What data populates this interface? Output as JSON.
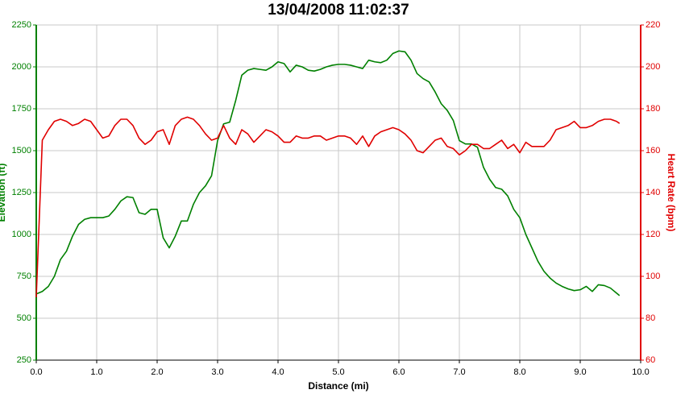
{
  "chart_data": {
    "type": "line",
    "title": "13/04/2008 11:02:37",
    "xlabel": "Distance (mi)",
    "ylabel": "Elevation (ft)",
    "y2label": "Heart Rate (bpm)",
    "x": [
      0,
      0.1,
      0.2,
      0.3,
      0.4,
      0.5,
      0.6,
      0.7,
      0.8,
      0.9,
      1,
      1.1,
      1.2,
      1.3,
      1.4,
      1.5,
      1.6,
      1.7,
      1.8,
      1.9,
      2,
      2.1,
      2.2,
      2.3,
      2.4,
      2.5,
      2.6,
      2.7,
      2.8,
      2.9,
      3,
      3.1,
      3.2,
      3.3,
      3.4,
      3.5,
      3.6,
      3.7,
      3.8,
      3.9,
      4,
      4.1,
      4.2,
      4.3,
      4.4,
      4.5,
      4.6,
      4.7,
      4.8,
      4.9,
      5,
      5.1,
      5.2,
      5.3,
      5.4,
      5.5,
      5.6,
      5.7,
      5.8,
      5.9,
      6,
      6.1,
      6.2,
      6.3,
      6.4,
      6.5,
      6.6,
      6.7,
      6.8,
      6.9,
      7,
      7.1,
      7.2,
      7.3,
      7.4,
      7.5,
      7.6,
      7.7,
      7.8,
      7.9,
      8,
      8.1,
      8.2,
      8.3,
      8.4,
      8.5,
      8.6,
      8.7,
      8.8,
      8.9,
      9,
      9.1,
      9.2,
      9.3,
      9.4,
      9.5,
      9.6,
      9.65
    ],
    "series": [
      {
        "name": "Elevation",
        "color": "#008000",
        "axis": "y",
        "values": [
          645,
          660,
          690,
          750,
          850,
          900,
          990,
          1060,
          1090,
          1100,
          1100,
          1100,
          1110,
          1150,
          1200,
          1225,
          1220,
          1130,
          1120,
          1150,
          1150,
          980,
          920,
          990,
          1080,
          1080,
          1180,
          1250,
          1290,
          1350,
          1560,
          1660,
          1670,
          1800,
          1950,
          1980,
          1990,
          1985,
          1980,
          2000,
          2030,
          2020,
          1970,
          2010,
          2000,
          1980,
          1975,
          1985,
          2000,
          2010,
          2015,
          2015,
          2010,
          2000,
          1990,
          2040,
          2030,
          2025,
          2040,
          2080,
          2095,
          2090,
          2040,
          1960,
          1930,
          1910,
          1850,
          1780,
          1740,
          1680,
          1560,
          1540,
          1540,
          1520,
          1400,
          1330,
          1280,
          1270,
          1230,
          1150,
          1100,
          1000,
          920,
          840,
          780,
          740,
          710,
          690,
          675,
          665,
          670,
          690,
          660,
          700,
          695,
          680,
          650,
          635
        ]
      },
      {
        "name": "Heart Rate",
        "color": "#e00000",
        "axis": "y2",
        "values": [
          90,
          165,
          170,
          174,
          175,
          174,
          172,
          173,
          175,
          174,
          170,
          166,
          167,
          172,
          175,
          175,
          172,
          166,
          163,
          165,
          169,
          170,
          163,
          172,
          175,
          176,
          175,
          172,
          168,
          165,
          166,
          172,
          166,
          163,
          170,
          168,
          164,
          167,
          170,
          169,
          167,
          164,
          164,
          167,
          166,
          166,
          167,
          167,
          165,
          166,
          167,
          167,
          166,
          163,
          167,
          162,
          167,
          169,
          170,
          171,
          170,
          168,
          165,
          160,
          159,
          162,
          165,
          166,
          162,
          161,
          158,
          160,
          163,
          163,
          161,
          161,
          163,
          165,
          161,
          163,
          159,
          164,
          162,
          162,
          162,
          165,
          170,
          171,
          172,
          174,
          171,
          171,
          172,
          174,
          175,
          175,
          174,
          173
        ]
      }
    ],
    "xlim": [
      0,
      10
    ],
    "xticks": [
      {
        "value": 0,
        "label": "0.0"
      },
      {
        "value": 1,
        "label": "1.0"
      },
      {
        "value": 2,
        "label": "2.0"
      },
      {
        "value": 3,
        "label": "3.0"
      },
      {
        "value": 4,
        "label": "4.0"
      },
      {
        "value": 5,
        "label": "5.0"
      },
      {
        "value": 6,
        "label": "6.0"
      },
      {
        "value": 7,
        "label": "7.0"
      },
      {
        "value": 8,
        "label": "8.0"
      },
      {
        "value": 9,
        "label": "9.0"
      },
      {
        "value": 10,
        "label": "10.0"
      }
    ],
    "ylim": [
      250,
      2250
    ],
    "yticks": [
      250,
      500,
      750,
      1000,
      1250,
      1500,
      1750,
      2000,
      2250
    ],
    "y2lim": [
      60,
      220
    ],
    "y2ticks": [
      60,
      80,
      100,
      120,
      140,
      160,
      180,
      200,
      220
    ],
    "grid": true
  }
}
